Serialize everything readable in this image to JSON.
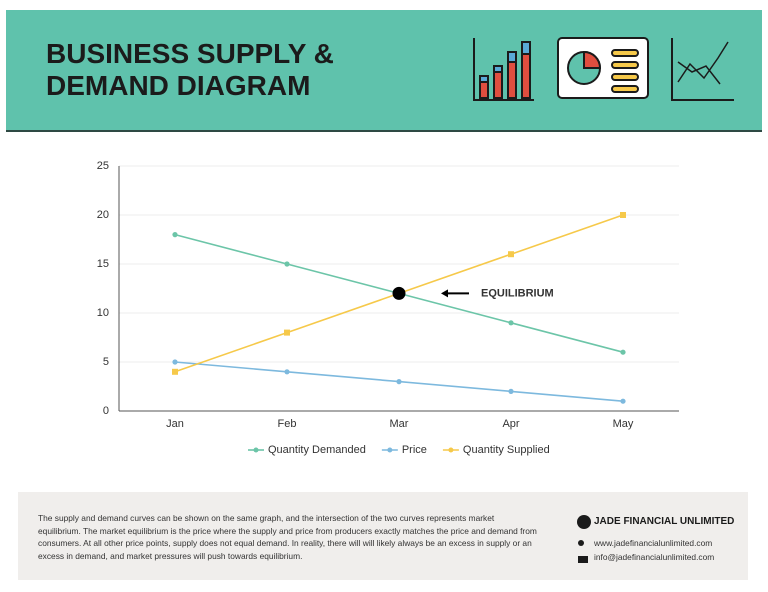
{
  "header": {
    "title": "BUSINESS SUPPLY & DEMAND DIAGRAM"
  },
  "chart_data": {
    "type": "line",
    "categories": [
      "Jan",
      "Feb",
      "Mar",
      "Apr",
      "May"
    ],
    "series": [
      {
        "name": "Quantity Demanded",
        "color": "#6cc5a8",
        "values": [
          18,
          15,
          12,
          9,
          6
        ]
      },
      {
        "name": "Price",
        "color": "#7db9de",
        "values": [
          5,
          4,
          3,
          2,
          1
        ]
      },
      {
        "name": "Quantity Supplied",
        "color": "#f6c94a",
        "values": [
          4,
          8,
          12,
          16,
          20
        ]
      }
    ],
    "ylim": [
      0,
      25
    ],
    "yticks": [
      0,
      5,
      10,
      15,
      20,
      25
    ],
    "grid": true,
    "legend": "bottom",
    "annotation": {
      "text": "EQUILIBRIUM",
      "category": "Mar",
      "value": 12
    }
  },
  "footer": {
    "text": "The supply and demand curves can be shown on the same graph, and the intersection of the two curves represents market equilibrium. The market equilibrium is the price where the supply and price from producers exactly matches the price and demand from consumers. At all other price points, supply does not equal demand. In reality, there will will likely always be an excess in supply or an excess in demand, and market pressures will push towards equilibrium.",
    "company": "JADE FINANCIAL UNLIMITED",
    "website": "www.jadefinancialunlimited.com",
    "email": "info@jadefinancialunlimited.com"
  }
}
